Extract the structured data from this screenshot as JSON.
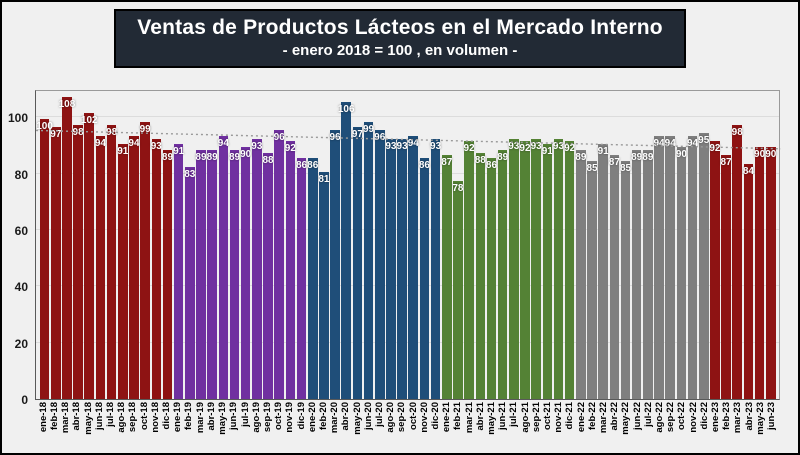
{
  "title": {
    "main": "Ventas de Productos Lácteos en el Mercado Interno",
    "subtitle": "- enero 2018 = 100 , en volumen -"
  },
  "chart_data": {
    "type": "bar",
    "title": "Ventas de Productos Lácteos en el Mercado Interno",
    "subtitle": "- enero 2018 = 100 , en volumen -",
    "ylabel": "",
    "xlabel": "",
    "ylim": [
      0,
      110
    ],
    "yticks": [
      "0",
      "20",
      "40",
      "60",
      "80",
      "100"
    ],
    "ytick_values": [
      0,
      20,
      40,
      60,
      80,
      100
    ],
    "grid": "horizontal gridline visible at 100",
    "legend_position": "none",
    "value_labels": "white bold numbers at inside top of each bar",
    "trendline": {
      "style": "dotted",
      "color": "#9a9a9a",
      "start_value": 96,
      "end_value": 89.5
    },
    "year_colors": {
      "18": "#8e1313",
      "19": "#7030a0",
      "20": "#1f4e79",
      "21": "#548235",
      "22": "#7f7f7f",
      "23": "#8e1313"
    },
    "categories": [
      "ene-18",
      "feb-18",
      "mar-18",
      "abr-18",
      "may-18",
      "jun-18",
      "jul-18",
      "ago-18",
      "sep-18",
      "oct-18",
      "nov-18",
      "dic-18",
      "ene-19",
      "feb-19",
      "mar-19",
      "abr-19",
      "may-19",
      "jun-19",
      "jul-19",
      "ago-19",
      "sep-19",
      "oct-19",
      "nov-19",
      "dic-19",
      "ene-20",
      "feb-20",
      "mar-20",
      "abr-20",
      "may-20",
      "jun-20",
      "jul-20",
      "ago-20",
      "sep-20",
      "oct-20",
      "nov-20",
      "dic-20",
      "ene-21",
      "feb-21",
      "mar-21",
      "abr-21",
      "may-21",
      "jun-21",
      "jul-21",
      "ago-21",
      "sep-21",
      "oct-21",
      "nov-21",
      "dic-21",
      "ene-22",
      "feb-22",
      "mar-22",
      "abr-22",
      "may-22",
      "jun-22",
      "jul-22",
      "ago-22",
      "sep-22",
      "oct-22",
      "nov-22",
      "dic-22",
      "ene-23",
      "feb-23",
      "mar-23",
      "abr-23",
      "may-23",
      "jun-23"
    ],
    "values": [
      100,
      97,
      108,
      98,
      102,
      94,
      98,
      91,
      94,
      99,
      93,
      89,
      91,
      83,
      89,
      89,
      94,
      89,
      90,
      93,
      88,
      96,
      92,
      86,
      86,
      81,
      96,
      106,
      97,
      99,
      96,
      93,
      93,
      94,
      86,
      93,
      87,
      78,
      92,
      88,
      86,
      89,
      93,
      92,
      93,
      91,
      93,
      92,
      89,
      85,
      91,
      87,
      85,
      89,
      89,
      94,
      94,
      90,
      94,
      95,
      92,
      87,
      98,
      84,
      90,
      90
    ]
  },
  "colors": {
    "background": "#f0f0f0",
    "title_box_bg": "#222a35",
    "title_text": "#ffffff",
    "gridline": "#dcdcdc",
    "axis_text": "#1a1a1a"
  }
}
